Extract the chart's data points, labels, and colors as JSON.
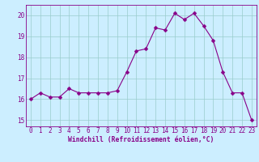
{
  "x": [
    0,
    1,
    2,
    3,
    4,
    5,
    6,
    7,
    8,
    9,
    10,
    11,
    12,
    13,
    14,
    15,
    16,
    17,
    18,
    19,
    20,
    21,
    22,
    23
  ],
  "y": [
    16.0,
    16.3,
    16.1,
    16.1,
    16.5,
    16.3,
    16.3,
    16.3,
    16.3,
    16.4,
    17.3,
    18.3,
    18.4,
    19.4,
    19.3,
    20.1,
    19.8,
    20.1,
    19.5,
    18.8,
    17.3,
    16.3,
    16.3,
    15.0
  ],
  "line_color": "#880088",
  "marker_color": "#880088",
  "bg_color": "#cceeff",
  "grid_color": "#99cccc",
  "axis_color": "#880088",
  "xlabel": "Windchill (Refroidissement éolien,°C)",
  "xlim": [
    -0.5,
    23.5
  ],
  "ylim": [
    14.7,
    20.5
  ],
  "yticks": [
    15,
    16,
    17,
    18,
    19,
    20
  ],
  "xticks": [
    0,
    1,
    2,
    3,
    4,
    5,
    6,
    7,
    8,
    9,
    10,
    11,
    12,
    13,
    14,
    15,
    16,
    17,
    18,
    19,
    20,
    21,
    22,
    23
  ],
  "label_fontsize": 5.8,
  "tick_fontsize": 5.5,
  "marker_size": 2.5,
  "linewidth": 0.8
}
